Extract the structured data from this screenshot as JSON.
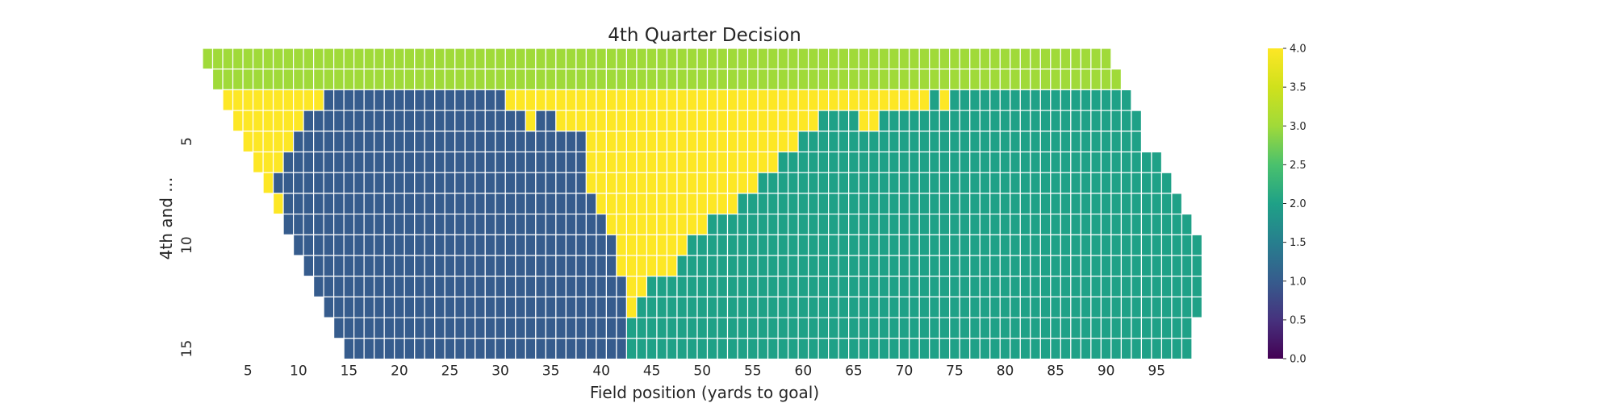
{
  "chart_data": {
    "type": "heatmap",
    "title": "4th Quarter Decision",
    "xlabel": "Field position (yards to goal)",
    "ylabel": "4th and ...",
    "x_ticks": [
      5,
      10,
      15,
      20,
      25,
      30,
      35,
      40,
      45,
      50,
      55,
      60,
      65,
      70,
      75,
      80,
      85,
      90,
      95
    ],
    "y_ticks": [
      5,
      10,
      15
    ],
    "x_range": [
      1,
      99
    ],
    "y_range": [
      1,
      15
    ],
    "grid": false,
    "colormap": "viridis",
    "vmin": 0,
    "vmax": 4,
    "colorbar_ticks": [
      "0.0",
      "0.5",
      "1.0",
      "1.5",
      "2.0",
      "2.5",
      "3.0",
      "3.5",
      "4.0"
    ],
    "rows": [
      {
        "down": 1,
        "start": 1,
        "runs": [
          [
            3,
            90
          ]
        ]
      },
      {
        "down": 2,
        "start": 2,
        "runs": [
          [
            3,
            90
          ]
        ]
      },
      {
        "down": 3,
        "start": 3,
        "runs": [
          [
            4,
            10
          ],
          [
            1,
            18
          ],
          [
            4,
            42
          ],
          [
            2,
            1
          ],
          [
            4,
            1
          ],
          [
            2,
            18
          ]
        ]
      },
      {
        "down": 4,
        "start": 4,
        "runs": [
          [
            4,
            7
          ],
          [
            1,
            22
          ],
          [
            4,
            1
          ],
          [
            1,
            2
          ],
          [
            4,
            26
          ],
          [
            2,
            4
          ],
          [
            4,
            2
          ],
          [
            2,
            26
          ]
        ]
      },
      {
        "down": 5,
        "start": 5,
        "runs": [
          [
            4,
            5
          ],
          [
            1,
            29
          ],
          [
            4,
            21
          ],
          [
            2,
            34
          ]
        ]
      },
      {
        "down": 6,
        "start": 6,
        "runs": [
          [
            4,
            3
          ],
          [
            1,
            30
          ],
          [
            4,
            19
          ],
          [
            2,
            38
          ]
        ]
      },
      {
        "down": 7,
        "start": 7,
        "runs": [
          [
            4,
            1
          ],
          [
            1,
            31
          ],
          [
            4,
            17
          ],
          [
            2,
            41
          ]
        ]
      },
      {
        "down": 8,
        "start": 8,
        "runs": [
          [
            4,
            1
          ],
          [
            1,
            31
          ],
          [
            4,
            14
          ],
          [
            2,
            44
          ]
        ]
      },
      {
        "down": 9,
        "start": 9,
        "runs": [
          [
            1,
            32
          ],
          [
            4,
            10
          ],
          [
            2,
            48
          ]
        ]
      },
      {
        "down": 10,
        "start": 10,
        "runs": [
          [
            1,
            32
          ],
          [
            4,
            7
          ],
          [
            2,
            51
          ]
        ]
      },
      {
        "down": 11,
        "start": 11,
        "runs": [
          [
            1,
            31
          ],
          [
            4,
            6
          ],
          [
            2,
            52
          ]
        ]
      },
      {
        "down": 12,
        "start": 12,
        "runs": [
          [
            1,
            31
          ],
          [
            4,
            2
          ],
          [
            2,
            55
          ]
        ]
      },
      {
        "down": 13,
        "start": 13,
        "runs": [
          [
            1,
            30
          ],
          [
            4,
            1
          ],
          [
            2,
            56
          ]
        ]
      },
      {
        "down": 14,
        "start": 14,
        "runs": [
          [
            1,
            29
          ],
          [
            2,
            56
          ]
        ]
      },
      {
        "down": 15,
        "start": 15,
        "runs": [
          [
            1,
            28
          ],
          [
            2,
            56
          ]
        ]
      }
    ]
  }
}
